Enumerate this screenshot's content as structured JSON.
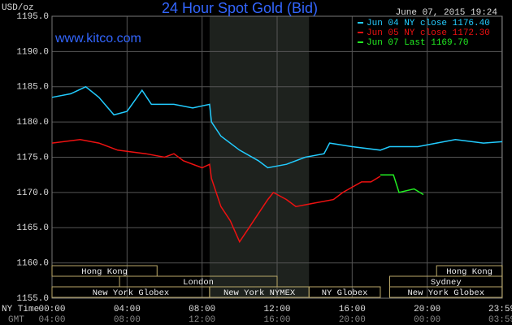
{
  "chart_data": {
    "type": "line",
    "title": "24 Hour Spot Gold (Bid)",
    "timestamp": "June 07, 2015 19:24",
    "watermark": "www.kitco.com",
    "y_label": "USD/oz",
    "x_label": "NY Time",
    "x2_label": "GMT",
    "xlim": [
      0,
      24
    ],
    "ylim": [
      1155,
      1195
    ],
    "yticks": [
      {
        "value": 1155,
        "label": "1155.0"
      },
      {
        "value": 1160,
        "label": "1160.0"
      },
      {
        "value": 1165,
        "label": "1165.0"
      },
      {
        "value": 1170,
        "label": "1170.0"
      },
      {
        "value": 1175,
        "label": "1175.0"
      },
      {
        "value": 1180,
        "label": "1180.0"
      },
      {
        "value": 1185,
        "label": "1185.0"
      },
      {
        "value": 1190,
        "label": "1190.0"
      },
      {
        "value": 1195,
        "label": "1195.0"
      }
    ],
    "xticks": [
      {
        "value": 0,
        "label": "00:00"
      },
      {
        "value": 4,
        "label": "04:00"
      },
      {
        "value": 8,
        "label": "08:00"
      },
      {
        "value": 12,
        "label": "12:00"
      },
      {
        "value": 16,
        "label": "16:00"
      },
      {
        "value": 20,
        "label": "20:00"
      },
      {
        "value": 23.98,
        "label": "23:59"
      }
    ],
    "x2tick_labels": [
      "04:00",
      "08:00",
      "12:00",
      "16:00",
      "20:00",
      "00:00",
      "03:59"
    ],
    "grid": true,
    "shade": [
      8.4,
      13.7
    ],
    "shade_color": "#1e221e",
    "sessions": [
      {
        "name": "Hong Kong",
        "start": 0,
        "end": 5.6,
        "row": 0
      },
      {
        "name": "Hong Kong",
        "start": 20.5,
        "end": 24,
        "row": 0
      },
      {
        "name": "London",
        "start": 3.6,
        "end": 12.0,
        "row": 1
      },
      {
        "name": "Sydney",
        "start": 18.0,
        "end": 24,
        "row": 1
      },
      {
        "name": "New York Globex",
        "start": 0,
        "end": 8.4,
        "row": 2
      },
      {
        "name": "New York NYMEX",
        "start": 8.4,
        "end": 13.7,
        "row": 2
      },
      {
        "name": "NY Globex",
        "start": 13.7,
        "end": 17.5,
        "row": 2
      },
      {
        "name": "New York Globex",
        "start": 18.0,
        "end": 24,
        "row": 2
      }
    ],
    "series": [
      {
        "name": "Jun 04 NY close 1176.40",
        "color": "#22ccff",
        "x": [
          0,
          1,
          1.8,
          2.5,
          3.3,
          4,
          4.8,
          5.3,
          6.5,
          7.5,
          8.4,
          8.5,
          9,
          10,
          11,
          11.5,
          12.5,
          13.5,
          14.5,
          14.8,
          16,
          17.5,
          18,
          19.5,
          20.5,
          21.5,
          23,
          24
        ],
        "values": [
          1183.5,
          1184,
          1185,
          1183.5,
          1181,
          1181.5,
          1184.5,
          1182.5,
          1182.5,
          1182,
          1182.5,
          1180,
          1178,
          1176,
          1174.5,
          1173.5,
          1174,
          1175,
          1175.5,
          1177,
          1176.5,
          1176,
          1176.5,
          1176.5,
          1177,
          1177.5,
          1177,
          1177.2
        ]
      },
      {
        "name": "Jun 05 NY close 1172.30",
        "color": "#ee1111",
        "x": [
          0,
          1.5,
          2.5,
          3.5,
          5,
          6,
          6.5,
          7,
          8,
          8.4,
          8.5,
          9,
          9.5,
          10,
          10.5,
          11,
          11.5,
          11.8,
          12.5,
          13,
          14,
          15,
          15.5,
          16.5,
          17,
          17.5
        ],
        "values": [
          1177,
          1177.5,
          1177,
          1176,
          1175.5,
          1175,
          1175.5,
          1174.5,
          1173.5,
          1174,
          1172,
          1168,
          1166,
          1163,
          1165,
          1167,
          1169,
          1170,
          1169,
          1168,
          1168.5,
          1169,
          1170,
          1171.5,
          1171.5,
          1172.3
        ]
      },
      {
        "name": "Jun 07 Last 1169.70",
        "color": "#22ee22",
        "x": [
          17.5,
          18.2,
          18.5,
          19.3,
          19.8
        ],
        "values": [
          1172.5,
          1172.5,
          1170,
          1170.5,
          1169.7
        ]
      }
    ]
  }
}
